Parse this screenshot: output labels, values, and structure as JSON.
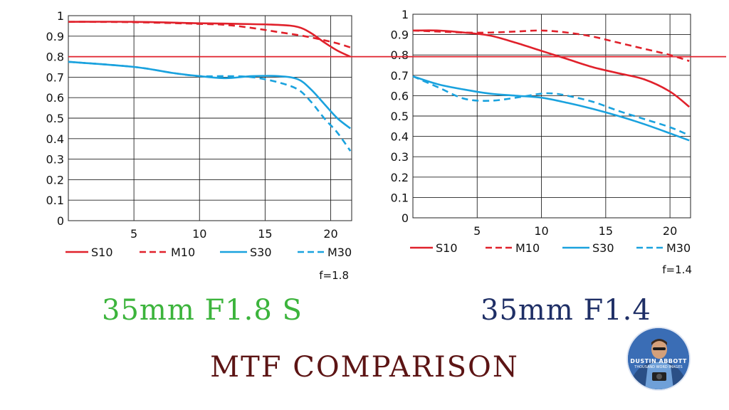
{
  "page": {
    "subtitle_left": "35mm F1.8 S",
    "subtitle_right": "35mm F1.4",
    "main_title": "MTF COMPARISON",
    "logo": {
      "line1": "DUSTIN ABBOTT",
      "line2": "THOUSAND WORD IMAGES"
    }
  },
  "colors": {
    "red": "#e0212b",
    "blue": "#1aa2de",
    "subtitle_left": "#3cb43c",
    "subtitle_right": "#1f2f66",
    "main_title": "#5c1414",
    "reference_line": "#e0212b"
  },
  "reference_line": {
    "y": 0.8,
    "label": ""
  },
  "chart_data": [
    {
      "type": "line",
      "title": "",
      "xlabel": "",
      "ylabel": "",
      "xlim": [
        0,
        21.6
      ],
      "ylim": [
        0,
        1
      ],
      "xticks": [
        5,
        10,
        15,
        20
      ],
      "yticks": [
        0,
        0.1,
        0.2,
        0.3,
        0.4,
        0.5,
        0.6,
        0.7,
        0.8,
        0.9,
        1
      ],
      "ytick_labels": [
        "0",
        "0.1",
        "0.2",
        "0.3",
        "0.4",
        "0.5",
        "0.6",
        "0.7",
        "0.8",
        "0.9",
        "1"
      ],
      "grid": true,
      "legend_position": "bottom",
      "annotation": "f=1.8",
      "series": [
        {
          "name": "S10",
          "color": "red",
          "dash": false,
          "x": [
            0,
            5,
            10,
            13,
            16,
            17.5,
            18.5,
            19.5,
            20.5,
            21.5
          ],
          "y": [
            0.97,
            0.97,
            0.963,
            0.96,
            0.955,
            0.945,
            0.915,
            0.87,
            0.83,
            0.8
          ]
        },
        {
          "name": "M10",
          "color": "red",
          "dash": true,
          "x": [
            0,
            5,
            10,
            12,
            14,
            16,
            18,
            19.5,
            20.5,
            21.5
          ],
          "y": [
            0.97,
            0.968,
            0.96,
            0.955,
            0.94,
            0.92,
            0.9,
            0.88,
            0.865,
            0.845
          ]
        },
        {
          "name": "S30",
          "color": "blue",
          "dash": false,
          "x": [
            0,
            5,
            8,
            10,
            12,
            14,
            16,
            17.5,
            18.5,
            19.5,
            20.5,
            21.5
          ],
          "y": [
            0.775,
            0.75,
            0.72,
            0.705,
            0.695,
            0.705,
            0.705,
            0.69,
            0.64,
            0.57,
            0.5,
            0.45
          ]
        },
        {
          "name": "M30",
          "color": "blue",
          "dash": true,
          "x": [
            0,
            5,
            8,
            10,
            12,
            14,
            16,
            17.5,
            18.5,
            19.5,
            20.5,
            21.5
          ],
          "y": [
            0.775,
            0.75,
            0.72,
            0.705,
            0.705,
            0.7,
            0.675,
            0.64,
            0.58,
            0.5,
            0.43,
            0.34
          ]
        }
      ]
    },
    {
      "type": "line",
      "title": "",
      "xlabel": "",
      "ylabel": "",
      "xlim": [
        0,
        21.6
      ],
      "ylim": [
        0,
        1
      ],
      "xticks": [
        5,
        10,
        15,
        20
      ],
      "yticks": [
        0,
        0.1,
        0.2,
        0.3,
        0.4,
        0.5,
        0.6,
        0.7,
        0.8,
        0.9,
        1
      ],
      "ytick_labels": [
        "0",
        "0.1",
        "0.2",
        "0.3",
        "0.4",
        "0.5",
        "0.6",
        "0.7",
        "0.8",
        "0.9",
        "1"
      ],
      "grid": true,
      "legend_position": "bottom",
      "annotation": "f=1.4",
      "series": [
        {
          "name": "S10",
          "color": "red",
          "dash": false,
          "x": [
            0,
            2,
            4,
            6,
            8,
            10,
            12,
            14,
            16,
            18,
            20,
            21.5
          ],
          "y": [
            0.92,
            0.92,
            0.91,
            0.895,
            0.86,
            0.82,
            0.78,
            0.74,
            0.71,
            0.68,
            0.62,
            0.545
          ]
        },
        {
          "name": "M10",
          "color": "red",
          "dash": true,
          "x": [
            0,
            2,
            4,
            6,
            8,
            10,
            12,
            14,
            16,
            18,
            20,
            21.5
          ],
          "y": [
            0.92,
            0.915,
            0.91,
            0.91,
            0.915,
            0.92,
            0.91,
            0.89,
            0.86,
            0.83,
            0.8,
            0.77
          ]
        },
        {
          "name": "S30",
          "color": "blue",
          "dash": false,
          "x": [
            0,
            2,
            4,
            6,
            8,
            10,
            12,
            14,
            16,
            18,
            20,
            21.5
          ],
          "y": [
            0.695,
            0.655,
            0.63,
            0.61,
            0.6,
            0.59,
            0.565,
            0.535,
            0.5,
            0.46,
            0.415,
            0.38
          ]
        },
        {
          "name": "M30",
          "color": "blue",
          "dash": true,
          "x": [
            0,
            2,
            4,
            6,
            8,
            10,
            11,
            12,
            14,
            16,
            18,
            20,
            21.5
          ],
          "y": [
            0.695,
            0.64,
            0.585,
            0.575,
            0.59,
            0.61,
            0.61,
            0.6,
            0.57,
            0.525,
            0.485,
            0.445,
            0.405
          ]
        }
      ]
    }
  ]
}
